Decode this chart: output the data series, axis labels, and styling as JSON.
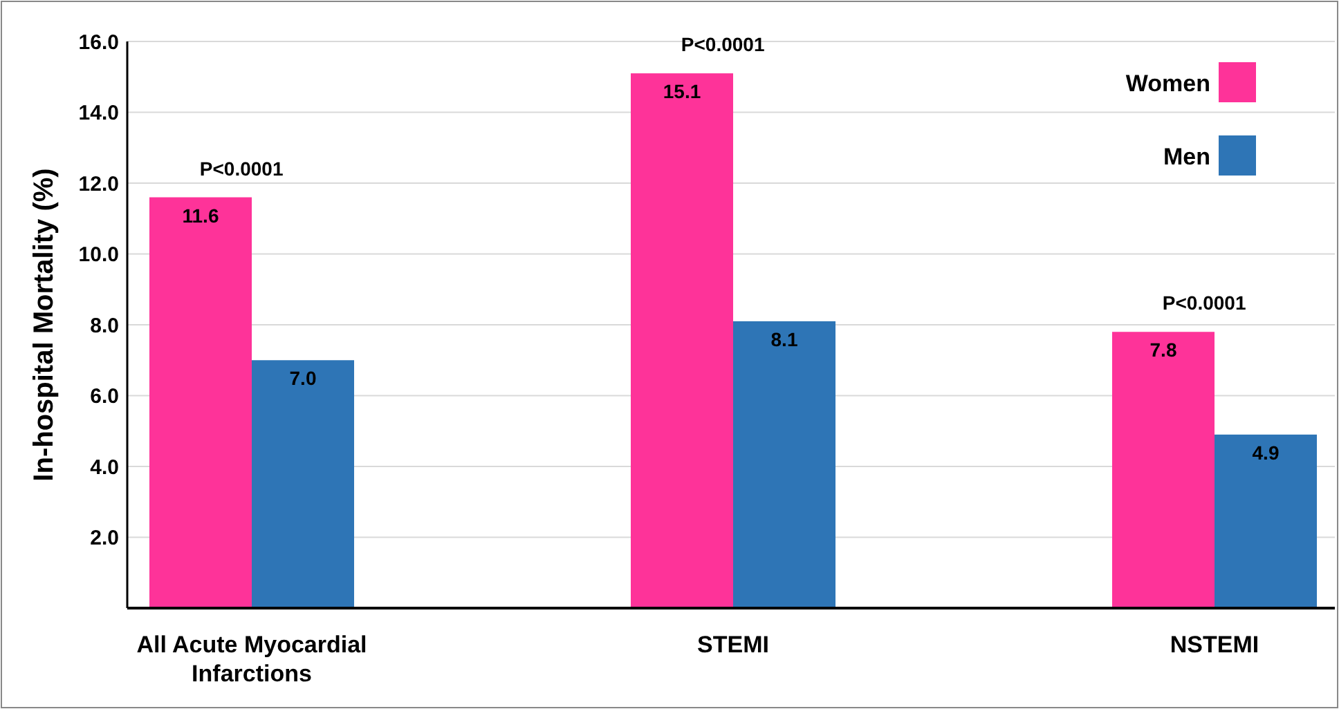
{
  "chart_data": {
    "type": "bar",
    "ylabel": "In-hospital Mortality (%)",
    "categories": [
      "All Acute Myocardial Infarctions",
      "STEMI",
      "NSTEMI"
    ],
    "series": [
      {
        "name": "Women",
        "color": "#fe3399",
        "values": [
          11.6,
          15.1,
          7.8
        ],
        "value_labels": [
          "11.6",
          "15.1",
          "7.8"
        ]
      },
      {
        "name": "Men",
        "color": "#2e75b6",
        "values": [
          7.0,
          8.1,
          4.9
        ],
        "value_labels": [
          "7.0",
          "8.1",
          "4.9"
        ]
      }
    ],
    "ylim": [
      0,
      16
    ],
    "yticks": [
      {
        "value": 2,
        "label": "2.0"
      },
      {
        "value": 4,
        "label": "4.0"
      },
      {
        "value": 6,
        "label": "6.0"
      },
      {
        "value": 8,
        "label": "8.0"
      },
      {
        "value": 10,
        "label": "10.0"
      },
      {
        "value": 12,
        "label": "12.0"
      },
      {
        "value": 14,
        "label": "14.0"
      },
      {
        "value": 16,
        "label": "16.0"
      }
    ],
    "grid": "y",
    "legend": "top right",
    "annotations": [
      "P<0.0001",
      "P<0.0001",
      "P<0.0001"
    ]
  }
}
